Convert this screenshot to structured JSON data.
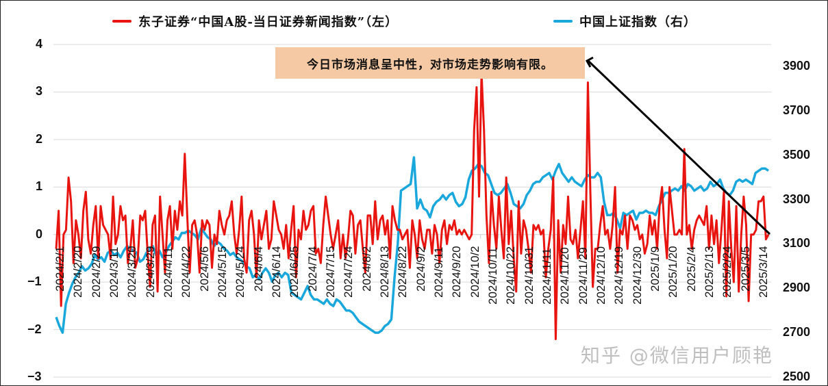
{
  "legend": {
    "left_series": {
      "label": "东子证券“中国A股-当日证券新闻指数”（左）",
      "color": "#e8140f"
    },
    "right_series": {
      "label": "中国上证指数（右）",
      "color": "#1aa7dc"
    }
  },
  "annotation": {
    "text": "今日市场消息呈中性，对市场走势影响有限。",
    "background": "#f5c9a4"
  },
  "watermark": "知乎 @微信用户顾艳",
  "colors": {
    "left_line": "#e8140f",
    "right_line": "#1aa7dc",
    "arrow": "#000000",
    "grid": "#d9d9d9"
  },
  "chart_data": {
    "type": "line",
    "title": "",
    "xlabel": "",
    "ylabel_left": "",
    "ylabel_right": "",
    "grid": true,
    "legend_position": "top",
    "left_axis": {
      "ticks": [
        "4",
        "3",
        "2",
        "1",
        "0",
        "−1",
        "−2",
        "−3"
      ],
      "range": [
        -3,
        4
      ]
    },
    "right_axis": {
      "ticks": [
        "3900",
        "3700",
        "3500",
        "3300",
        "3100",
        "2900",
        "2700",
        "2500"
      ],
      "range": [
        2500,
        3900
      ]
    },
    "x_tick_labels": [
      "2024/2/1",
      "2024/2/20",
      "2024/2/29",
      "2024/3/11",
      "2024/3/20",
      "2024/3/29",
      "2024/4/11",
      "2024/4/22",
      "2024/5/6",
      "2024/5/15",
      "2024/5/24",
      "2024/6/4",
      "2024/6/14",
      "2024/6/25",
      "2024/7/4",
      "2024/7/15",
      "2024/7/24",
      "2024/8/2",
      "2024/8/13",
      "2024/8/22",
      "2024/9/2",
      "2024/9/11",
      "2024/9/20",
      "2024/10/2",
      "2024/10/11",
      "2024/10/22",
      "2024/10/31",
      "2024/11/11",
      "2024/11/20",
      "2024/11/29",
      "2024/12/10",
      "2024/12/19",
      "2024/12/30",
      "2025/1/9",
      "2025/1/20",
      "2025/2/4",
      "2025/2/13",
      "2025/2/24",
      "2025/3/5",
      "2025/3/14"
    ],
    "series": [
      {
        "name": "东子证券“中国A股-当日证券新闻指数”（左）",
        "axis": "left",
        "values": [
          -0.3,
          0.5,
          -1.5,
          0.0,
          0.1,
          1.2,
          0.7,
          -0.6,
          0.3,
          0.0,
          -0.5,
          0.5,
          0.9,
          -0.1,
          -0.4,
          0.2,
          0.6,
          -0.5,
          0.6,
          0.2,
          0.1,
          0.0,
          -0.5,
          0.8,
          -0.2,
          0.0,
          0.6,
          0.3,
          0.4,
          -0.6,
          -0.3,
          0.3,
          -0.7,
          -0.5,
          0.4,
          0.3,
          0.5,
          -0.4,
          -1.1,
          0.2,
          0.4,
          -1.2,
          0.8,
          0.0,
          -0.8,
          0.3,
          0.6,
          -0.3,
          0.5,
          0.1,
          0.7,
          0.4,
          1.7,
          0.4,
          -0.8,
          0.2,
          0.3,
          0.0,
          -0.8,
          0.3,
          0.1,
          0.3,
          0.2,
          -0.7,
          0.0,
          -0.2,
          0.5,
          0.2,
          0.0,
          0.3,
          0.4,
          0.7,
          0.0,
          -0.4,
          0.1,
          0.8,
          -0.5,
          -0.8,
          0.3,
          0.5,
          0.0,
          -0.9,
          0.3,
          -0.1,
          0.2,
          0.5,
          -0.3,
          -0.1,
          0.7,
          0.4,
          0.1,
          0.0,
          -0.3,
          0.2,
          -0.5,
          0.1,
          0.6,
          -0.9,
          0.1,
          -0.1,
          0.5,
          0.1,
          0.2,
          0.5,
          0.6,
          -0.4,
          -0.3,
          -0.6,
          0.2,
          0.8,
          0.4,
          0.0,
          -0.3,
          0.0,
          0.3,
          -0.5,
          0.0,
          -0.5,
          -0.1,
          0.5,
          0.4,
          -0.4,
          0.2,
          0.3,
          -0.3,
          -0.8,
          0.4,
          0.4,
          -0.2,
          0.7,
          -0.1,
          0.3,
          0.4,
          0.0,
          0.3,
          -0.5,
          0.6,
          0.3,
          0.1,
          0.1,
          -0.1,
          0.0,
          0.1,
          -0.7,
          0.3,
          0.0,
          -0.5,
          0.3,
          -0.1,
          -0.3,
          0.1,
          0.1,
          -0.4,
          0.2,
          0.0,
          -0.6,
          0.1,
          0.3,
          -0.2,
          0.2,
          0.1,
          0.3,
          0.0,
          0.1,
          0.0,
          0.1,
          0.0,
          -0.1,
          0.0,
          2.2,
          3.1,
          0.8,
          3.4,
          2.2,
          0.4,
          -0.6,
          0.9,
          0.2,
          -0.3,
          0.8,
          0.1,
          -0.5,
          1.2,
          -0.2,
          0.5,
          -0.5,
          -1.2,
          0.7,
          -0.4,
          0.3,
          0.1,
          -0.3,
          -0.8,
          0.2,
          0.1,
          0.2,
          0.0,
          0.1,
          -0.9,
          -0.3,
          0.1,
          1.2,
          -2.2,
          0.3,
          -0.8,
          0.2,
          -0.2,
          0.8,
          -0.1,
          -0.2,
          0.1,
          -0.5,
          0.1,
          0.7,
          -0.5,
          3.2,
          0.9,
          -1.1,
          -0.3,
          -0.3,
          0.2,
          0.6,
          0.0,
          0.1,
          -0.3,
          0.2,
          1.0,
          -0.8,
          0.1,
          0.0,
          0.4,
          -0.3,
          0.4,
          0.3,
          0.1,
          0.2,
          -0.1,
          0.0,
          -0.4,
          -0.2,
          0.4,
          0.0,
          0.3,
          -0.3,
          0.6,
          1.0,
          0.1,
          -0.5,
          1.0,
          0.5,
          0.0,
          0.0,
          0.1,
          0.0,
          1.8,
          0.0,
          0.2,
          -0.3,
          0.1,
          0.3,
          0.4,
          0.3,
          0.2,
          0.6,
          -0.3,
          0.4,
          -0.2,
          0.3,
          -0.6,
          0.1,
          0.9,
          -1.3,
          0.7,
          -0.3,
          -1.0,
          0.6,
          -1.2,
          0.0,
          0.8,
          0.2,
          -1.4,
          0.0,
          0.0,
          0.1,
          0.7,
          0.7,
          0.8,
          -0.1,
          0.0
        ]
      },
      {
        "name": "中国上证指数（右）",
        "axis": "right",
        "values": [
          2770,
          2730,
          2700,
          2830,
          2880,
          2920,
          2950,
          2970,
          3000,
          2980,
          2990,
          3010,
          3050,
          3030,
          3040,
          3020,
          3060,
          3070,
          3050,
          3060,
          3040,
          3070,
          3090,
          3080,
          3070,
          3060,
          3020,
          3030,
          3060,
          3080,
          3090,
          3050,
          3070,
          3040,
          3060,
          3090,
          3110,
          3130,
          3120,
          3150,
          3150,
          3160,
          3150,
          3140,
          3120,
          3170,
          3150,
          3130,
          3120,
          3090,
          3110,
          3100,
          3080,
          3070,
          3050,
          3060,
          3040,
          3030,
          3020,
          3000,
          2990,
          2950,
          2960,
          2940,
          2970,
          2990,
          2970,
          2930,
          2960,
          2970,
          2950,
          2970,
          2960,
          2880,
          2870,
          2860,
          2850,
          2880,
          2910,
          2870,
          2850,
          2850,
          2840,
          2830,
          2850,
          2830,
          2820,
          2850,
          2840,
          2820,
          2800,
          2800,
          2790,
          2770,
          2750,
          2740,
          2730,
          2720,
          2710,
          2700,
          2700,
          2710,
          2730,
          2740,
          2760,
          2950,
          3100,
          3340,
          3350,
          3360,
          3370,
          3490,
          3260,
          3300,
          3260,
          3250,
          3220,
          3270,
          3290,
          3300,
          3320,
          3300,
          3320,
          3330,
          3290,
          3270,
          3280,
          3310,
          3390,
          3430,
          3440,
          3460,
          3450,
          3420,
          3410,
          3370,
          3330,
          3320,
          3330,
          3350,
          3370,
          3330,
          3280,
          3270,
          3260,
          3280,
          3320,
          3340,
          3370,
          3380,
          3380,
          3400,
          3410,
          3420,
          3390,
          3430,
          3460,
          3420,
          3400,
          3380,
          3400,
          3380,
          3370,
          3360,
          3390,
          3410,
          3400,
          3400,
          3420,
          3400,
          3290,
          3230,
          3230,
          3240,
          3210,
          3170,
          3240,
          3230,
          3240,
          3250,
          3210,
          3240,
          3240,
          3250,
          3240,
          3240,
          3230,
          3270,
          3300,
          3330,
          3330,
          3340,
          3350,
          3340,
          3360,
          3340,
          3370,
          3360,
          3340,
          3350,
          3360,
          3340,
          3350,
          3380,
          3360,
          3370,
          3390,
          3350,
          3330,
          3320,
          3340,
          3380,
          3390,
          3380,
          3390,
          3380,
          3370,
          3420,
          3430,
          3440,
          3440,
          3430
        ]
      }
    ],
    "annotations": [
      {
        "text": "今日市场消息呈中性，对市场走势影响有限。",
        "arrow": "from annotation box to last data point of left series (2025/3/14)"
      }
    ]
  }
}
